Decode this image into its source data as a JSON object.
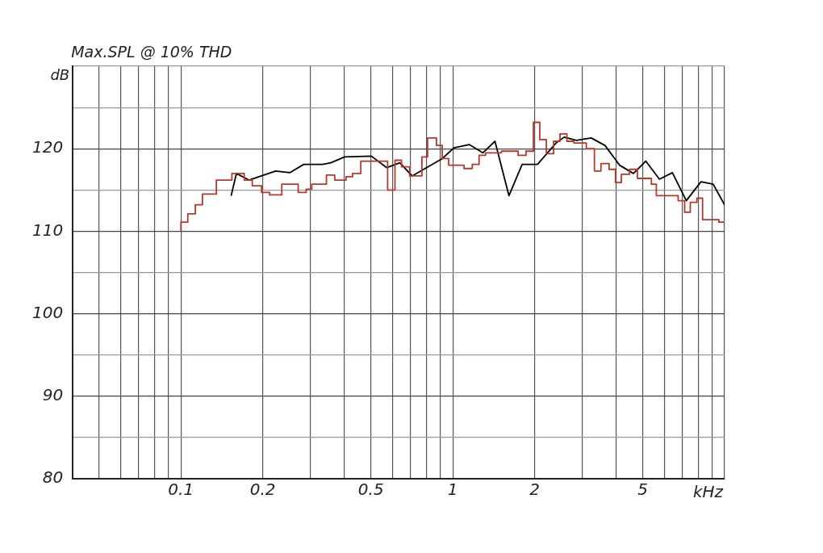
{
  "chart_data": {
    "type": "line",
    "title": "Max.SPL @ 10% THD",
    "xlabel": "kHz",
    "ylabel": "dB",
    "log": "x",
    "grid": true,
    "legend": false,
    "marker": "none",
    "xlim": [
      0.04,
      10
    ],
    "ylim": [
      80,
      130
    ],
    "xticks": [
      {
        "value": 0.05,
        "label": null
      },
      {
        "value": 0.06,
        "label": null
      },
      {
        "value": 0.07,
        "label": null
      },
      {
        "value": 0.08,
        "label": null
      },
      {
        "value": 0.09,
        "label": null
      },
      {
        "value": 0.1,
        "label": "0.1"
      },
      {
        "value": 0.2,
        "label": "0.2"
      },
      {
        "value": 0.3,
        "label": null
      },
      {
        "value": 0.4,
        "label": null
      },
      {
        "value": 0.5,
        "label": "0.5"
      },
      {
        "value": 0.6,
        "label": null
      },
      {
        "value": 0.7,
        "label": null
      },
      {
        "value": 0.8,
        "label": null
      },
      {
        "value": 0.9,
        "label": null
      },
      {
        "value": 1,
        "label": "1"
      },
      {
        "value": 2,
        "label": "2"
      },
      {
        "value": 3,
        "label": null
      },
      {
        "value": 4,
        "label": null
      },
      {
        "value": 5,
        "label": "5"
      },
      {
        "value": 6,
        "label": null
      },
      {
        "value": 7,
        "label": null
      },
      {
        "value": 8,
        "label": null
      },
      {
        "value": 9,
        "label": null
      },
      {
        "value": 10,
        "label": null
      }
    ],
    "yticks": [
      80,
      {
        "value": 85,
        "label": null
      },
      90,
      {
        "value": 95,
        "label": null
      },
      100,
      {
        "value": 105,
        "label": null
      },
      110,
      {
        "value": 115,
        "label": null
      },
      120,
      {
        "value": 125,
        "label": null
      },
      {
        "value": 130,
        "label": null
      }
    ],
    "series": [
      {
        "type": "step",
        "color": "#b03a2e",
        "x": [
          0.1,
          0.106,
          0.113,
          0.12,
          0.135,
          0.154,
          0.171,
          0.183,
          0.198,
          0.212,
          0.235,
          0.27,
          0.289,
          0.303,
          0.343,
          0.368,
          0.405,
          0.428,
          0.459,
          0.576,
          0.613,
          0.648,
          0.694,
          0.77,
          0.808,
          0.871,
          0.915,
          0.966,
          1.1,
          1.18,
          1.25,
          1.32,
          1.51,
          1.74,
          1.86,
          1.98,
          2.09,
          2.21,
          2.35,
          2.48,
          2.63,
          2.79,
          3.1,
          3.32,
          3.51,
          3.76,
          3.97,
          4.17,
          4.47,
          4.78,
          5.38,
          5.61,
          6.75,
          7.13,
          7.48,
          7.91,
          8.3,
          9.53,
          10
        ],
        "values": [
          110.0,
          111.1,
          112.1,
          113.2,
          114.5,
          116.2,
          117.0,
          116.2,
          115.5,
          114.7,
          114.4,
          115.7,
          114.7,
          115.1,
          115.7,
          116.8,
          116.2,
          116.6,
          117.0,
          118.5,
          115.0,
          118.6,
          117.8,
          116.7,
          119.0,
          121.3,
          120.4,
          118.8,
          118.0,
          117.6,
          118.1,
          119.2,
          119.5,
          119.7,
          119.2,
          119.7,
          123.2,
          121.1,
          119.4,
          120.9,
          121.8,
          120.9,
          120.7,
          120.0,
          117.3,
          118.2,
          117.5,
          115.9,
          116.9,
          117.5,
          116.4,
          115.7,
          114.3,
          113.7,
          112.3,
          113.5,
          114.0,
          111.4,
          111.1
        ]
      },
      {
        "type": "line",
        "color": "#000000",
        "x": [
          0.153,
          0.16,
          0.178,
          0.223,
          0.252,
          0.283,
          0.332,
          0.356,
          0.4,
          0.502,
          0.572,
          0.639,
          0.709,
          0.915,
          1.01,
          1.15,
          1.29,
          1.43,
          1.61,
          1.8,
          2.05,
          2.4,
          2.57,
          2.85,
          3.23,
          3.63,
          4.11,
          4.62,
          5.13,
          5.76,
          6.43,
          7.23,
          8.19,
          9.08,
          10
        ],
        "values": [
          114.3,
          117.0,
          116.2,
          117.3,
          117.1,
          118.1,
          118.1,
          118.3,
          119.0,
          119.1,
          117.7,
          118.3,
          116.7,
          118.8,
          120.1,
          120.5,
          119.5,
          120.9,
          114.3,
          118.1,
          118.1,
          120.7,
          121.4,
          121.0,
          121.3,
          120.4,
          118.0,
          117.0,
          118.5,
          116.3,
          117.1,
          113.7,
          116.0,
          115.7,
          113.2
        ]
      }
    ]
  }
}
